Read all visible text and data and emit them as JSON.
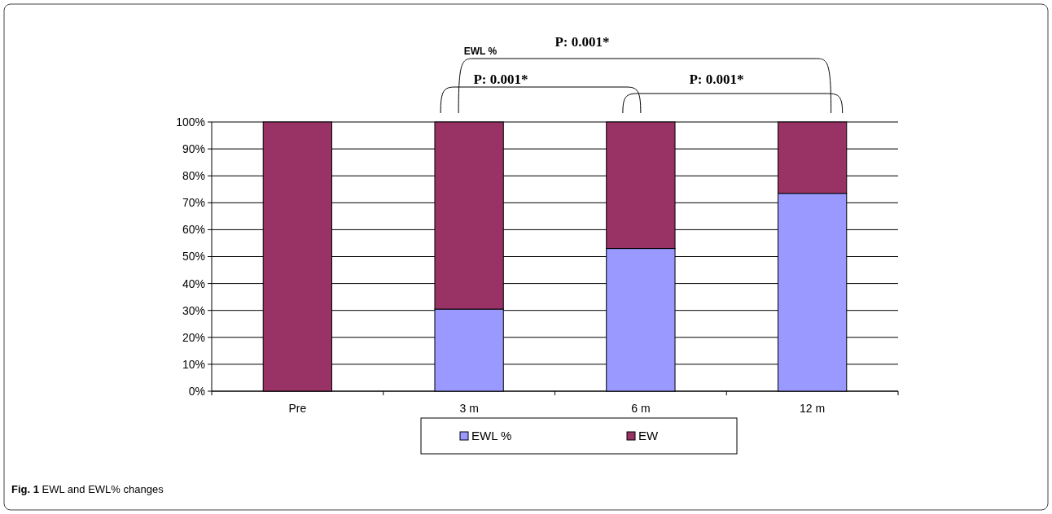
{
  "chart_data": {
    "type": "bar",
    "title": "EWL %",
    "categories": [
      "Pre",
      "3 m",
      "6 m",
      "12 m"
    ],
    "stacked": true,
    "series": [
      {
        "name": "EWL %",
        "color": "#9999ff",
        "values": [
          0,
          30.5,
          53,
          73.5
        ]
      },
      {
        "name": "EW",
        "color": "#993366",
        "values": [
          100,
          69.5,
          47,
          26.5
        ]
      }
    ],
    "ylim": [
      0,
      100
    ],
    "yticks": [
      {
        "value": 0,
        "label": "0%"
      },
      {
        "value": 10,
        "label": "10%"
      },
      {
        "value": 20,
        "label": "20%"
      },
      {
        "value": 30,
        "label": "30%"
      },
      {
        "value": 40,
        "label": "40%"
      },
      {
        "value": 50,
        "label": "50%"
      },
      {
        "value": 60,
        "label": "60%"
      },
      {
        "value": 70,
        "label": "70%"
      },
      {
        "value": 80,
        "label": "80%"
      },
      {
        "value": 90,
        "label": "90%"
      },
      {
        "value": 100,
        "label": "100%"
      }
    ],
    "grid": "y",
    "legend": "bottom",
    "annotations": [
      "P: 0.001*",
      "P: 0.001*",
      "P: 0.001*",
      "Fig. 1 EWL and EWL% changes"
    ]
  }
}
